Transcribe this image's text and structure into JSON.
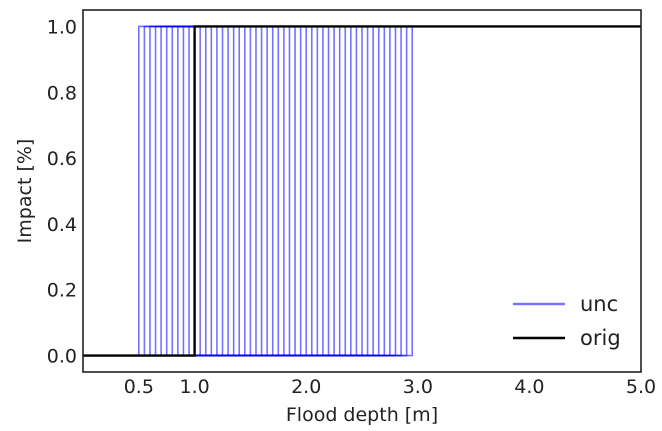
{
  "chart_data": {
    "type": "line",
    "title": "",
    "xlabel": "Flood depth [m]",
    "ylabel": "Impact [%]",
    "xlim": [
      0.0,
      5.0
    ],
    "ylim": [
      -0.05,
      1.05
    ],
    "x_ticks": [
      0.5,
      1.0,
      2.0,
      3.0,
      4.0,
      5.0
    ],
    "x_tick_labels": [
      "0.5",
      "1.0",
      "2.0",
      "3.0",
      "4.0",
      "5.0"
    ],
    "y_ticks": [
      0.0,
      0.2,
      0.4,
      0.6,
      0.8,
      1.0
    ],
    "y_tick_labels": [
      "0.0",
      "0.2",
      "0.4",
      "0.6",
      "0.8",
      "1.0"
    ],
    "grid": false,
    "legend_position": "bottom-right",
    "series": [
      {
        "name": "unc",
        "kind": "step",
        "color": "#0000ff",
        "opacity": 0.55,
        "thresholds": [
          0.5,
          0.55,
          0.6,
          0.65,
          0.7,
          0.75,
          0.8,
          0.85,
          0.9,
          0.95,
          1.0,
          1.05,
          1.1,
          1.15,
          1.2,
          1.25,
          1.3,
          1.35,
          1.4,
          1.45,
          1.5,
          1.55,
          1.6,
          1.65,
          1.7,
          1.75,
          1.8,
          1.85,
          1.9,
          1.95,
          2.0,
          2.05,
          2.1,
          2.15,
          2.2,
          2.25,
          2.3,
          2.35,
          2.4,
          2.45,
          2.5,
          2.55,
          2.6,
          2.65,
          2.7,
          2.75,
          2.8,
          2.85,
          2.9,
          2.95
        ],
        "y_before": 0.0,
        "y_after": 1.0
      },
      {
        "name": "orig",
        "kind": "step",
        "color": "#000000",
        "opacity": 1.0,
        "thresholds": [
          1.0
        ],
        "y_before": 0.0,
        "y_after": 1.0
      }
    ]
  }
}
